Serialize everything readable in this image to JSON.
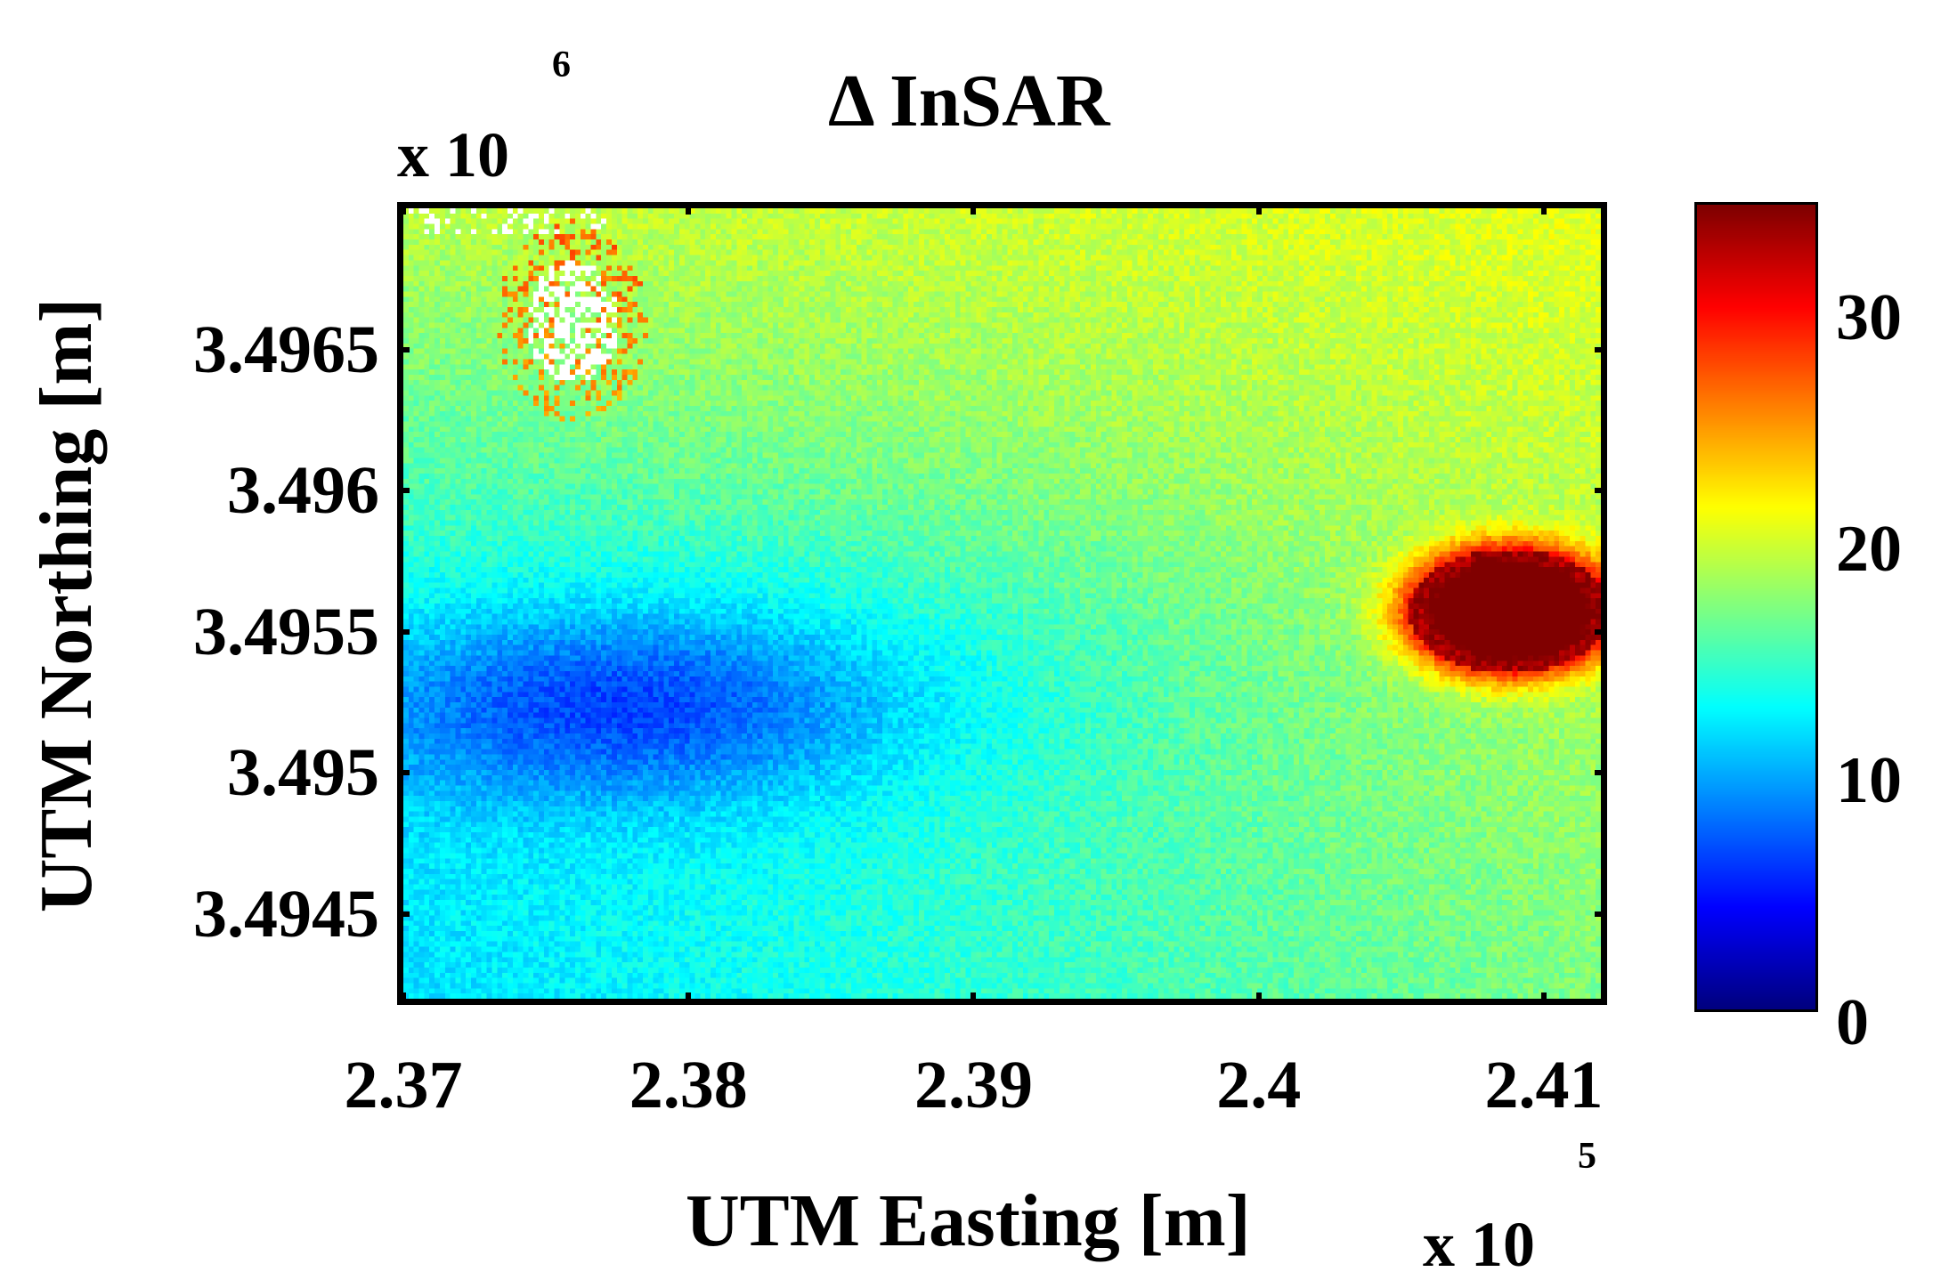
{
  "chart_data": {
    "type": "heatmap",
    "title": "Δ InSAR",
    "xlabel": "UTM Easting [m]",
    "ylabel": "UTM Northing [m]",
    "x_multiplier": {
      "base": "x 10",
      "exponent": "5"
    },
    "y_multiplier": {
      "base": "x 10",
      "exponent": "6"
    },
    "x_ticks": [
      2.37,
      2.38,
      2.39,
      2.4,
      2.41
    ],
    "x_tick_labels": [
      "2.37",
      "2.38",
      "2.39",
      "2.4",
      "2.41"
    ],
    "xlim": [
      2.37,
      2.412
    ],
    "y_ticks": [
      3.4965,
      3.496,
      3.4955,
      3.495,
      3.4945
    ],
    "y_tick_labels": [
      "3.4965",
      "3.496",
      "3.4955",
      "3.495",
      "3.4945"
    ],
    "ylim": [
      3.4942,
      3.497
    ],
    "colorbar": {
      "colormap": "jet",
      "range": [
        0,
        35
      ],
      "ticks": [
        0,
        10,
        20,
        30
      ],
      "tick_labels": [
        "0",
        "10",
        "20",
        "30"
      ]
    },
    "field_description_values": {
      "background_range": [
        12,
        22
      ],
      "low_region_min": 8,
      "high_region_max": 35
    }
  }
}
